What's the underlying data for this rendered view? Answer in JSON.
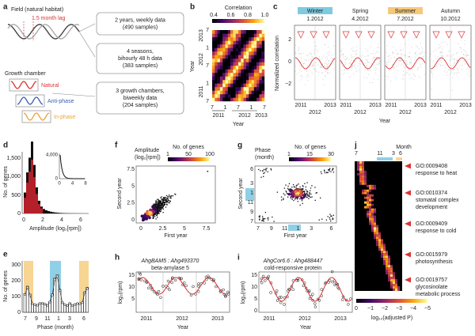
{
  "panel_labels": [
    "a",
    "b",
    "c",
    "d",
    "e",
    "f",
    "g",
    "h",
    "i",
    "j"
  ],
  "a": {
    "field": "Field (natural habitat)",
    "lag": "1.5 month lag",
    "chamber": "Growth chamber",
    "natural": "Natural",
    "anti": "Anti-phase",
    "in": "In-phase",
    "boxes": [
      [
        "2 years, weekly data",
        "(490 samples)"
      ],
      [
        "4 seasons,",
        "bihourly 48 h data",
        "(383 samples)"
      ],
      [
        "3 growth chambers,",
        "biweekly data",
        "(204 samples)"
      ]
    ]
  },
  "b": {
    "colorbar_title": "Correlation",
    "colorbar_ticks": [
      "0.4",
      "0.6",
      "0.8",
      "1.0"
    ],
    "y_label": "Year",
    "x_label": "Year",
    "month_ticks": [
      "7",
      "1",
      "7",
      "1",
      "7"
    ],
    "years": [
      "2011",
      "2012",
      "2013"
    ]
  },
  "c": {
    "seasons": [
      "Winter",
      "Spring",
      "Summer",
      "Autumn"
    ],
    "dates": [
      "1.2012",
      "4.2012",
      "7.2012",
      "10.2012"
    ],
    "y_ticks": [
      "2",
      "0",
      "−2"
    ],
    "y_label": "Normalized correlation",
    "edge_years": [
      "2011",
      "2013"
    ],
    "mid_year": "2012",
    "x_label": "Year"
  },
  "d": {
    "y_label": "No. of genes",
    "y_ticks": [
      "1,500",
      "1,000",
      "500",
      "0"
    ],
    "x_ticks": [
      "0",
      "2",
      "4",
      "6"
    ],
    "x_label": "Amplitude (log₂[rpm])",
    "inset_y_ticks": [
      "4,000",
      "0"
    ],
    "inset_x_ticks": [
      "0",
      "4",
      "8"
    ]
  },
  "e": {
    "y_label": "No. of genes",
    "y_ticks": [
      "300",
      "200",
      "100",
      "0"
    ],
    "x_ticks": [
      "7",
      "9",
      "11",
      "1",
      "3",
      "6"
    ],
    "x_label": "Phase (month)"
  },
  "f": {
    "title": [
      "Amplitude",
      "(log₂[rpm])"
    ],
    "colorbar_title": "No. of genes",
    "colorbar_ticks": [
      "1",
      "50",
      "100"
    ],
    "y_label": "Second year",
    "y_ticks": [
      "0",
      "2.5",
      "5",
      "7.5"
    ],
    "x_ticks": [
      "0",
      "2.5",
      "5",
      "7.5"
    ],
    "x_label": "First year"
  },
  "g": {
    "title": [
      "Phase",
      "(month)"
    ],
    "colorbar_title": "No. of genes",
    "colorbar_ticks": [
      "1",
      "15",
      "30"
    ],
    "y_label": "Second year",
    "y_ticks": [
      "7",
      "9",
      "11",
      "1",
      "3",
      "6"
    ],
    "x_ticks": [
      "7",
      "9",
      "11",
      "1",
      "3",
      "6"
    ],
    "x_label": "First year"
  },
  "h": {
    "gene": "AhgBAM5 : Ahg493370",
    "product": "beta-amylase 5",
    "y_label": "log₂(rpm)",
    "y_ticks": [
      "15",
      "10",
      "5"
    ],
    "x_ticks": [
      "2011",
      "2012",
      "2013"
    ],
    "x_label": "Year"
  },
  "i": {
    "gene": "AhgCor6.6 : Ahg488447",
    "product": "cold-responsive protein",
    "y_label": "log₂(rpm)",
    "y_ticks": [
      "15",
      "10",
      "5",
      "0"
    ],
    "x_ticks": [
      "2011",
      "2012",
      "2013"
    ],
    "x_label": "Year"
  },
  "j": {
    "month_label": "Month",
    "month_ticks": [
      "7",
      "11",
      "3",
      "6"
    ],
    "terms": [
      [
        "GO:0009408",
        "response to heat"
      ],
      [
        "GO:0010374",
        "stomatal complex",
        "development"
      ],
      [
        "GO:0009409",
        "response to cold"
      ],
      [
        "GO:0015979",
        "photosynthesis"
      ],
      [
        "GO:0019757",
        "glycosinolate",
        "metabolic process"
      ]
    ],
    "colorbar_ticks": [
      "0",
      "−1",
      "−2",
      "−3",
      "−4",
      "−5"
    ],
    "colorbar_label": "log₁₀(adjusted P)"
  }
}
